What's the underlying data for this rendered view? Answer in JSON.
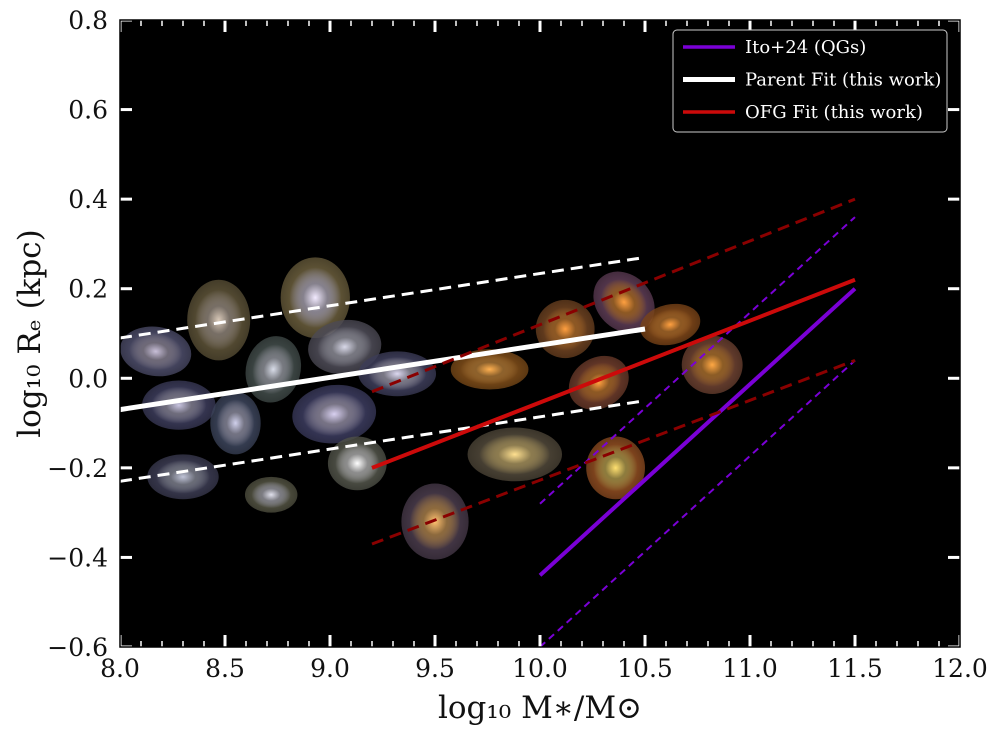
{
  "chart_data": {
    "type": "scatter",
    "title": "",
    "xlabel": "log₁₀ M∗/M⊙",
    "ylabel": "log₁₀ Rₑ (kpc)",
    "xlim": [
      8.0,
      12.0
    ],
    "ylim": [
      -0.6,
      0.8
    ],
    "xticks": [
      "8.0",
      "8.5",
      "9.0",
      "9.5",
      "10.0",
      "10.5",
      "11.0",
      "11.5",
      "12.0"
    ],
    "yticks": [
      "−0.6",
      "−0.4",
      "−0.2",
      "0.0",
      "0.2",
      "0.4",
      "0.6",
      "0.8"
    ],
    "background": "#000000",
    "grid": false,
    "legend": {
      "position": "top-right",
      "entries": [
        {
          "label": "Ito+24 (QGs)",
          "color": "#7a00d6"
        },
        {
          "label": "Parent Fit (this work)",
          "color": "#ffffff"
        },
        {
          "label": "OFG Fit (this work)",
          "color": "#cc0a0a"
        }
      ]
    },
    "series": [
      {
        "name": "Ito+24 (QGs)",
        "color": "#7a00d6",
        "style": "solid",
        "x": [
          10.0,
          11.5
        ],
        "y": [
          -0.44,
          0.2
        ]
      },
      {
        "color": "#7a00d6",
        "style": "dashed",
        "x": [
          10.0,
          11.5
        ],
        "y": [
          -0.28,
          0.36
        ]
      },
      {
        "color": "#7a00d6",
        "style": "dashed",
        "x": [
          10.0,
          11.5
        ],
        "y": [
          -0.6,
          0.04
        ]
      },
      {
        "name": "Parent Fit (this work)",
        "color": "#ffffff",
        "style": "solid",
        "x": [
          8.0,
          10.5
        ],
        "y": [
          -0.07,
          0.11
        ]
      },
      {
        "color": "#ffffff",
        "style": "dashed",
        "x": [
          8.0,
          10.5
        ],
        "y": [
          0.09,
          0.27
        ]
      },
      {
        "color": "#ffffff",
        "style": "dashed",
        "x": [
          8.0,
          10.5
        ],
        "y": [
          -0.23,
          -0.05
        ]
      },
      {
        "name": "OFG Fit (this work)",
        "color": "#cc0a0a",
        "style": "solid",
        "x": [
          9.2,
          11.5
        ],
        "y": [
          -0.2,
          0.22
        ]
      },
      {
        "color": "#8a0000",
        "style": "dashed",
        "x": [
          9.2,
          11.5
        ],
        "y": [
          -0.03,
          0.4
        ]
      },
      {
        "color": "#8a0000",
        "style": "dashed",
        "x": [
          9.2,
          11.5
        ],
        "y": [
          -0.37,
          0.04
        ]
      }
    ],
    "galaxies": [
      {
        "x": 8.17,
        "y": 0.06,
        "w": 0.34,
        "h": 0.11,
        "rot": 8,
        "core": "#c8bfd8",
        "halo": "#4a4a66"
      },
      {
        "x": 8.47,
        "y": 0.13,
        "w": 0.3,
        "h": 0.18,
        "rot": 0,
        "core": "#d8c8b8",
        "halo": "#5a5036"
      },
      {
        "x": 8.93,
        "y": 0.18,
        "w": 0.33,
        "h": 0.18,
        "rot": 0,
        "core": "#f2eaff",
        "halo": "#665a3a"
      },
      {
        "x": 9.07,
        "y": 0.07,
        "w": 0.35,
        "h": 0.12,
        "rot": -8,
        "core": "#d8d8e8",
        "halo": "#4c4a55"
      },
      {
        "x": 8.73,
        "y": 0.02,
        "w": 0.26,
        "h": 0.15,
        "rot": 15,
        "core": "#d8dce8",
        "halo": "#404a48"
      },
      {
        "x": 9.32,
        "y": 0.01,
        "w": 0.37,
        "h": 0.1,
        "rot": 0,
        "core": "#dcd8f0",
        "halo": "#3c3c58"
      },
      {
        "x": 8.28,
        "y": -0.06,
        "w": 0.35,
        "h": 0.11,
        "rot": 0,
        "core": "#c8c4e0",
        "halo": "#3a3a58"
      },
      {
        "x": 8.55,
        "y": -0.1,
        "w": 0.24,
        "h": 0.14,
        "rot": 0,
        "core": "#d0d0ec",
        "halo": "#3a4258"
      },
      {
        "x": 9.02,
        "y": -0.08,
        "w": 0.4,
        "h": 0.13,
        "rot": -6,
        "core": "#d8d0f0",
        "halo": "#3a3a5c"
      },
      {
        "x": 9.13,
        "y": -0.19,
        "w": 0.28,
        "h": 0.12,
        "rot": 0,
        "core": "#ffffff",
        "halo": "#505248"
      },
      {
        "x": 8.3,
        "y": -0.22,
        "w": 0.34,
        "h": 0.1,
        "rot": 0,
        "core": "#c0c4d8",
        "halo": "#3a3a50"
      },
      {
        "x": 8.72,
        "y": -0.26,
        "w": 0.25,
        "h": 0.08,
        "rot": 0,
        "core": "#e0e0ec",
        "halo": "#505040"
      },
      {
        "x": 9.5,
        "y": -0.32,
        "w": 0.32,
        "h": 0.17,
        "rot": 0,
        "core": "#ffc070",
        "halo": "#483a4a"
      },
      {
        "x": 9.76,
        "y": 0.02,
        "w": 0.37,
        "h": 0.09,
        "rot": 0,
        "core": "#ffb050",
        "halo": "#7a4a18"
      },
      {
        "x": 9.88,
        "y": -0.17,
        "w": 0.45,
        "h": 0.12,
        "rot": 0,
        "core": "#ffe090",
        "halo": "#4e4638"
      },
      {
        "x": 10.12,
        "y": 0.11,
        "w": 0.28,
        "h": 0.13,
        "rot": 0,
        "core": "#ff9f40",
        "halo": "#6a4020"
      },
      {
        "x": 10.4,
        "y": 0.17,
        "w": 0.26,
        "h": 0.15,
        "rot": -45,
        "core": "#ffa040",
        "halo": "#5a3a52"
      },
      {
        "x": 10.62,
        "y": 0.12,
        "w": 0.29,
        "h": 0.09,
        "rot": -12,
        "core": "#ffa040",
        "halo": "#7a4418"
      },
      {
        "x": 10.28,
        "y": -0.01,
        "w": 0.24,
        "h": 0.14,
        "rot": 60,
        "core": "#ffa040",
        "halo": "#6a3a2a"
      },
      {
        "x": 10.82,
        "y": 0.03,
        "w": 0.29,
        "h": 0.13,
        "rot": 0,
        "core": "#ffa844",
        "halo": "#6a4030"
      },
      {
        "x": 10.36,
        "y": -0.2,
        "w": 0.28,
        "h": 0.14,
        "rot": 0,
        "core": "#ffe070",
        "halo": "#8a4a20"
      }
    ]
  }
}
